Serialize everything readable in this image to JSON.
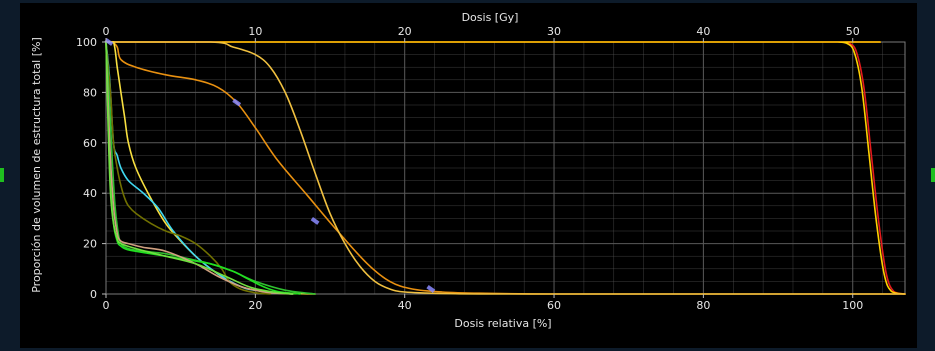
{
  "chart_data": {
    "type": "line",
    "title": "",
    "top_axis": {
      "label": "Dosis [Gy]",
      "ticks": [
        "0",
        "10",
        "20",
        "30",
        "40",
        "50"
      ],
      "tick_values": [
        0,
        10,
        20,
        30,
        40,
        50
      ],
      "range": [
        0,
        53.5
      ]
    },
    "x_axis": {
      "label": "Dosis relativa [%]",
      "ticks": [
        "0",
        "20",
        "40",
        "60",
        "80",
        "100"
      ],
      "tick_values": [
        0,
        20,
        40,
        60,
        80,
        100
      ],
      "range": [
        0,
        107
      ]
    },
    "y_axis": {
      "label": "Proporción de volumen de estructura total [%]",
      "ticks": [
        "0",
        "20",
        "40",
        "60",
        "80",
        "100"
      ],
      "tick_values": [
        0,
        20,
        40,
        60,
        80,
        100
      ],
      "range": [
        0,
        100
      ]
    },
    "grid": true,
    "colors": {
      "background": "#000000",
      "outer": "#0d1b2a",
      "grid": "#5a5a5a",
      "border": "#7a7a7a",
      "marker": "#8a8aff"
    },
    "series": [
      {
        "color": "#e31a1c",
        "x": [
          0,
          96,
          98,
          99.5,
          100.5,
          101.5,
          102.5,
          103.5,
          104.5,
          105.5,
          107
        ],
        "y": [
          100,
          100,
          100,
          99.5,
          96,
          82,
          55,
          28,
          8,
          1,
          0
        ]
      },
      {
        "color": "#ffd000",
        "x": [
          0,
          96,
          98,
          99.2,
          100.2,
          101.2,
          102.2,
          103.2,
          104.2,
          105.2,
          107
        ],
        "y": [
          100,
          100,
          100,
          99.5,
          96,
          82,
          55,
          28,
          8,
          1,
          0
        ]
      },
      {
        "color": "#e89010",
        "x": [
          0,
          0.8,
          1.5,
          2,
          4,
          8,
          12,
          15,
          17.5,
          20,
          23,
          27,
          31,
          35,
          38,
          41,
          45,
          50,
          60,
          80,
          107
        ],
        "y": [
          100,
          100,
          98,
          93,
          90,
          87,
          85,
          82,
          76,
          66,
          53,
          39,
          25,
          12,
          5,
          2,
          0.8,
          0.3,
          0,
          0,
          0
        ]
      },
      {
        "color": "#f0c040",
        "x": [
          0,
          14,
          17,
          20,
          22,
          24,
          26,
          28,
          30,
          32,
          34,
          36,
          38,
          40,
          45,
          50,
          60,
          107
        ],
        "y": [
          100,
          100,
          98,
          95,
          90,
          80,
          65,
          48,
          32,
          20,
          11,
          5,
          2,
          0.8,
          0.2,
          0,
          0,
          0
        ]
      },
      {
        "color": "#f8e040",
        "x": [
          0,
          1,
          1.5,
          2,
          2.5,
          3,
          4,
          6,
          8,
          10,
          12,
          14,
          16,
          18,
          20,
          23,
          28
        ],
        "y": [
          100,
          100,
          90,
          80,
          70,
          60,
          50,
          38,
          28,
          21,
          15,
          10,
          6,
          3,
          1.5,
          0.5,
          0
        ]
      },
      {
        "color": "#40d8f0",
        "x": [
          0,
          0.5,
          1,
          1.5,
          2,
          3,
          5,
          7,
          9,
          12,
          15,
          18,
          20,
          25
        ],
        "y": [
          100,
          85,
          60,
          55,
          50,
          45,
          40,
          34,
          25,
          15,
          8,
          3,
          1.5,
          0
        ]
      },
      {
        "color": "#707000",
        "x": [
          0,
          0.6,
          1,
          1.5,
          2,
          2.5,
          3,
          4,
          6,
          8,
          10,
          12,
          14,
          15.5,
          16.5,
          18,
          20,
          22
        ],
        "y": [
          100,
          80,
          60,
          50,
          43,
          38,
          35,
          32,
          28,
          25,
          23,
          20,
          15,
          10,
          5,
          2,
          0.5,
          0
        ]
      },
      {
        "color": "#30c030",
        "x": [
          0,
          0.4,
          0.8,
          1.2,
          1.6,
          2,
          3,
          5,
          8,
          11,
          14,
          17,
          20,
          24,
          28
        ],
        "y": [
          100,
          80,
          55,
          35,
          25,
          20,
          18,
          17,
          16,
          14,
          12,
          9,
          5,
          1.5,
          0
        ]
      },
      {
        "color": "#20e020",
        "x": [
          0,
          0.3,
          0.6,
          1,
          1.5,
          2,
          3,
          6,
          10,
          14,
          17,
          19,
          21,
          23,
          26
        ],
        "y": [
          100,
          70,
          45,
          28,
          21,
          19,
          17.5,
          16,
          14,
          12,
          9,
          6,
          3,
          1,
          0
        ]
      },
      {
        "color": "#d0a080",
        "x": [
          0,
          0.5,
          1,
          1.5,
          2,
          3,
          5,
          8,
          12,
          15,
          18,
          20,
          22,
          25
        ],
        "y": [
          100,
          60,
          35,
          24,
          21,
          20,
          18.5,
          17,
          12,
          7,
          3,
          1.5,
          0.5,
          0
        ]
      },
      {
        "color": "#70e040",
        "x": [
          0,
          0.3,
          0.6,
          1,
          1.5,
          2,
          4,
          8,
          12,
          16,
          19,
          21,
          23,
          25
        ],
        "y": [
          100,
          65,
          40,
          28,
          22,
          20,
          18,
          15,
          12,
          7,
          3,
          1.5,
          0.5,
          0
        ]
      }
    ],
    "markers": [
      {
        "x": 0.4,
        "y": 100
      },
      {
        "x": 17.5,
        "y": 76
      },
      {
        "x": 28,
        "y": 29
      },
      {
        "x": 43.5,
        "y": 2
      }
    ]
  }
}
